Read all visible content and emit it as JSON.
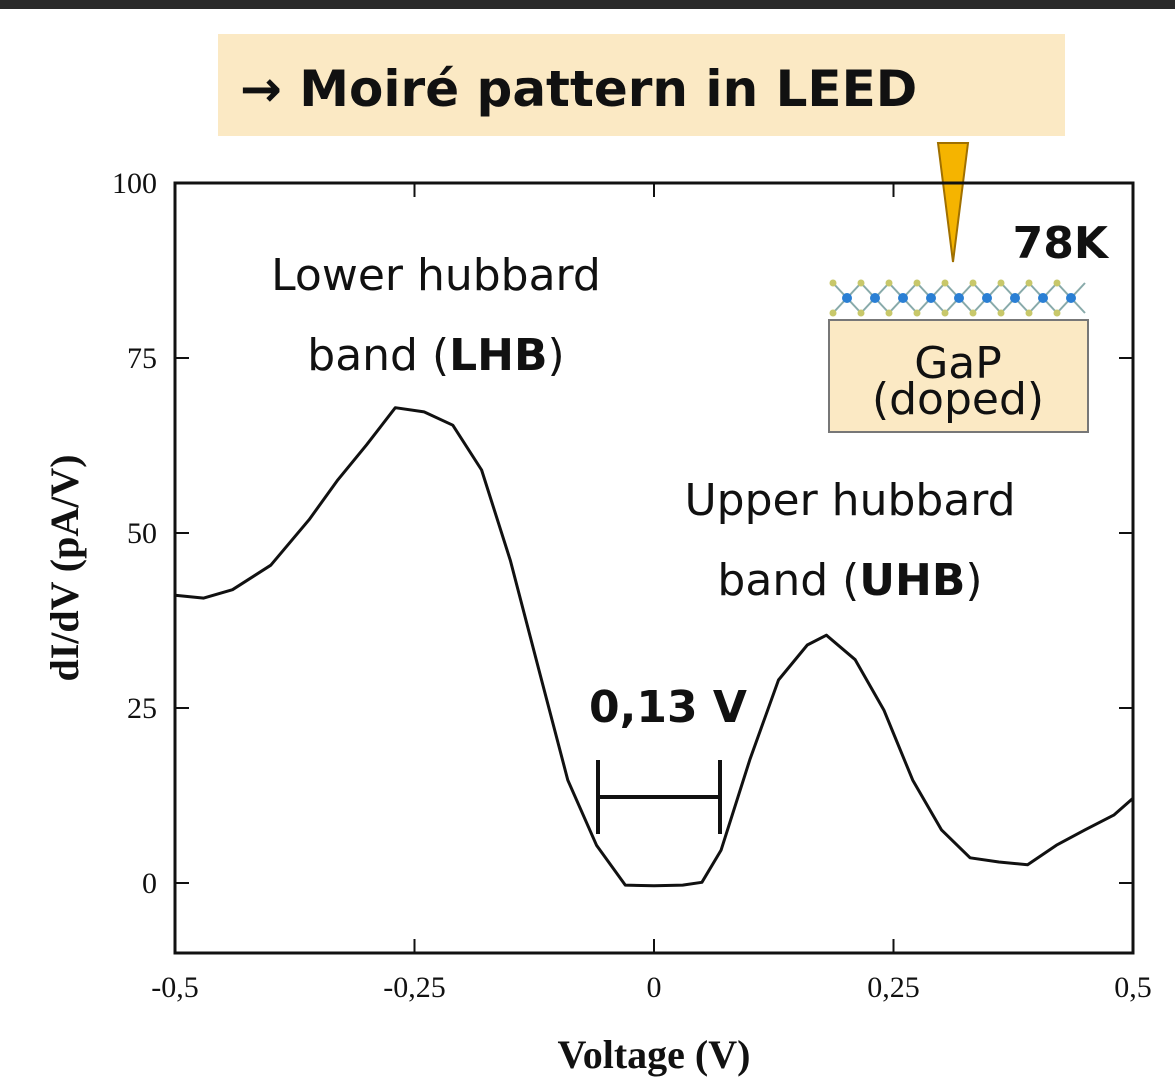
{
  "chart_data": {
    "type": "line",
    "banner": "→ Moiré pattern in LEED",
    "x_label": "Voltage (V)",
    "y_label": "dI/dV (pA/V)",
    "color": "#111111",
    "x": [
      -0.5,
      -0.47,
      -0.44,
      -0.4,
      -0.36,
      -0.33,
      -0.3,
      -0.27,
      -0.24,
      -0.21,
      -0.18,
      -0.15,
      -0.12,
      -0.09,
      -0.06,
      -0.03,
      0,
      0.03,
      0.05,
      0.07,
      0.1,
      0.13,
      0.16,
      0.18,
      0.21,
      0.24,
      0.27,
      0.3,
      0.33,
      0.36,
      0.39,
      0.42,
      0.45,
      0.48,
      0.5
    ],
    "values": [
      41.1,
      40.7,
      41.9,
      45.4,
      51.9,
      57.6,
      62.6,
      67.9,
      67.3,
      65.4,
      59,
      46.1,
      30.4,
      14.7,
      5.4,
      -0.3,
      -0.4,
      -0.3,
      0.1,
      4.7,
      17.6,
      29,
      34,
      35.4,
      31.9,
      24.7,
      14.7,
      7.6,
      3.6,
      3,
      2.6,
      5.4,
      7.6,
      9.7,
      12.1
    ],
    "xlim": [
      -0.5,
      0.5
    ],
    "ylim": [
      -10,
      100
    ],
    "xticks": [
      {
        "value": -0.5,
        "label": "-0,5"
      },
      {
        "value": -0.25,
        "label": "-0,25"
      },
      0,
      {
        "value": 0.25,
        "label": "0,25"
      },
      {
        "value": 0.5,
        "label": "0,5"
      }
    ],
    "yticks": [
      0,
      25,
      50,
      75,
      100
    ],
    "annotations": {
      "lhb": {
        "line1": "Lower hubbard",
        "line2": "band (",
        "bold": "LHB",
        "end": ")"
      },
      "uhb": {
        "line1": "Upper hubbard",
        "line2": "band (",
        "bold": "UHB",
        "end": ")"
      },
      "gap": "0,13 V",
      "temperature": "78K",
      "substrate": "GaP",
      "substrate_note": "(doped)"
    }
  }
}
